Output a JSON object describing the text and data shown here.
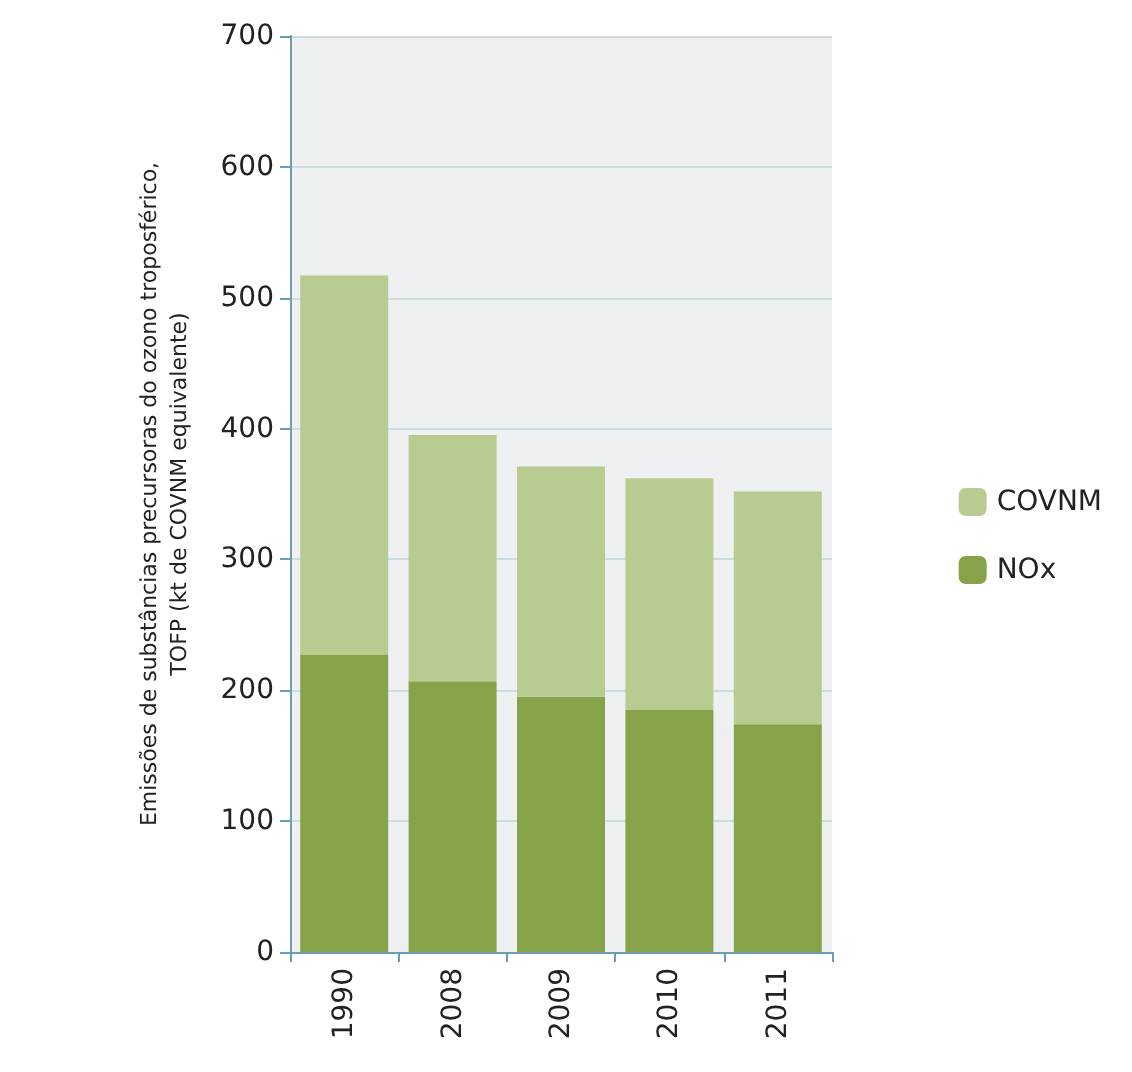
{
  "chart_data": {
    "type": "bar",
    "stacked": true,
    "ylabel": "Emissões de substâncias precursoras do ozono troposférico,\nTOFP (kt de COVNM equivalente)",
    "categories": [
      "1990",
      "2008",
      "2009",
      "2010",
      "2011"
    ],
    "series": [
      {
        "name": "NOx",
        "color": "#86a34a",
        "values": [
          227,
          207,
          195,
          185,
          174
        ]
      },
      {
        "name": "COVNM",
        "color": "#b8cc92",
        "values": [
          290,
          188,
          176,
          177,
          178
        ]
      }
    ],
    "ylim": [
      0,
      700
    ],
    "yticks": [
      0,
      100,
      200,
      300,
      400,
      500,
      600,
      700
    ],
    "grid": "y",
    "legend": "right"
  }
}
